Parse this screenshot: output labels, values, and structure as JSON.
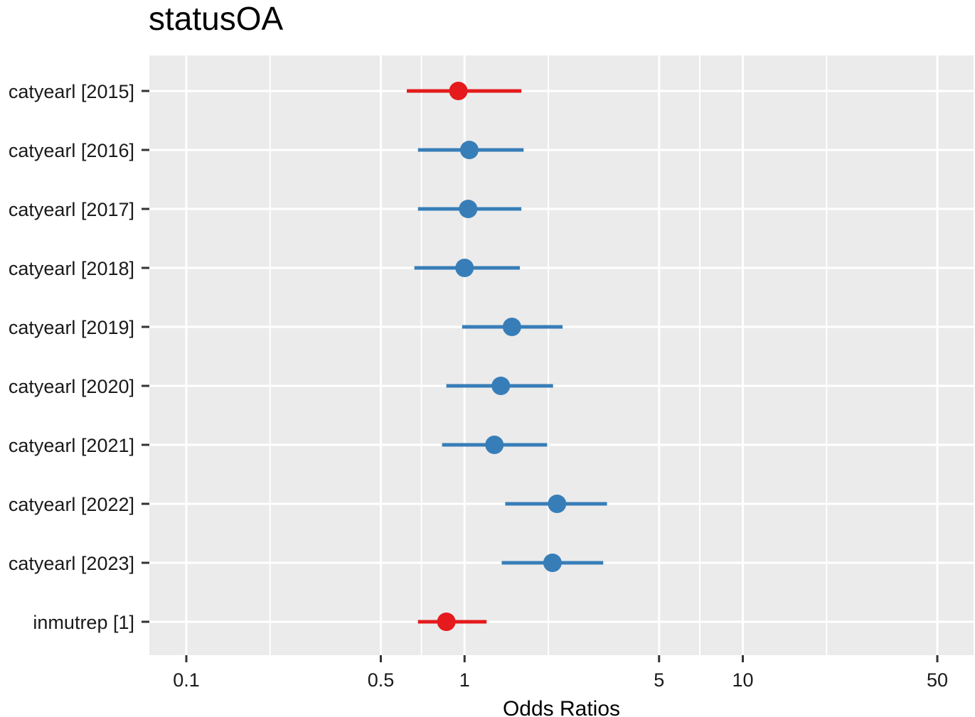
{
  "chart_data": {
    "type": "forest",
    "title": "statusOA",
    "xlabel": "Odds Ratios",
    "ylabel": "",
    "x_scale": "log",
    "xlim": [
      0.08,
      55
    ],
    "x_ticks": [
      {
        "value": 0.1,
        "label": "0.1"
      },
      {
        "value": 0.5,
        "label": "0.5"
      },
      {
        "value": 1,
        "label": "1"
      },
      {
        "value": 5,
        "label": "5"
      },
      {
        "value": 10,
        "label": "10"
      },
      {
        "value": 50,
        "label": "50"
      }
    ],
    "x_minor_gridlines": [
      0.2,
      0.7,
      2,
      7,
      20
    ],
    "grid": true,
    "colors": {
      "panel_background": "#ebebeb",
      "gridline": "#ffffff",
      "positive": "#377eb8",
      "negative": "#e41a1c",
      "tick_text": "#1a1a1a",
      "tick_mark": "#333333"
    },
    "terms": [
      {
        "label": "catyearl [2015]",
        "estimate": 0.95,
        "ci_low": 0.62,
        "ci_high": 1.6,
        "color": "#e41a1c"
      },
      {
        "label": "catyearl [2016]",
        "estimate": 1.04,
        "ci_low": 0.68,
        "ci_high": 1.63,
        "color": "#377eb8"
      },
      {
        "label": "catyearl [2017]",
        "estimate": 1.03,
        "ci_low": 0.68,
        "ci_high": 1.6,
        "color": "#377eb8"
      },
      {
        "label": "catyearl [2018]",
        "estimate": 1.0,
        "ci_low": 0.66,
        "ci_high": 1.58,
        "color": "#377eb8"
      },
      {
        "label": "catyearl [2019]",
        "estimate": 1.48,
        "ci_low": 0.98,
        "ci_high": 2.25,
        "color": "#377eb8"
      },
      {
        "label": "catyearl [2020]",
        "estimate": 1.35,
        "ci_low": 0.86,
        "ci_high": 2.08,
        "color": "#377eb8"
      },
      {
        "label": "catyearl [2021]",
        "estimate": 1.28,
        "ci_low": 0.83,
        "ci_high": 1.98,
        "color": "#377eb8"
      },
      {
        "label": "catyearl [2022]",
        "estimate": 2.15,
        "ci_low": 1.4,
        "ci_high": 3.25,
        "color": "#377eb8"
      },
      {
        "label": "catyearl [2023]",
        "estimate": 2.07,
        "ci_low": 1.36,
        "ci_high": 3.15,
        "color": "#377eb8"
      },
      {
        "label": "inmutrep [1]",
        "estimate": 0.86,
        "ci_low": 0.68,
        "ci_high": 1.2,
        "color": "#e41a1c"
      }
    ]
  }
}
